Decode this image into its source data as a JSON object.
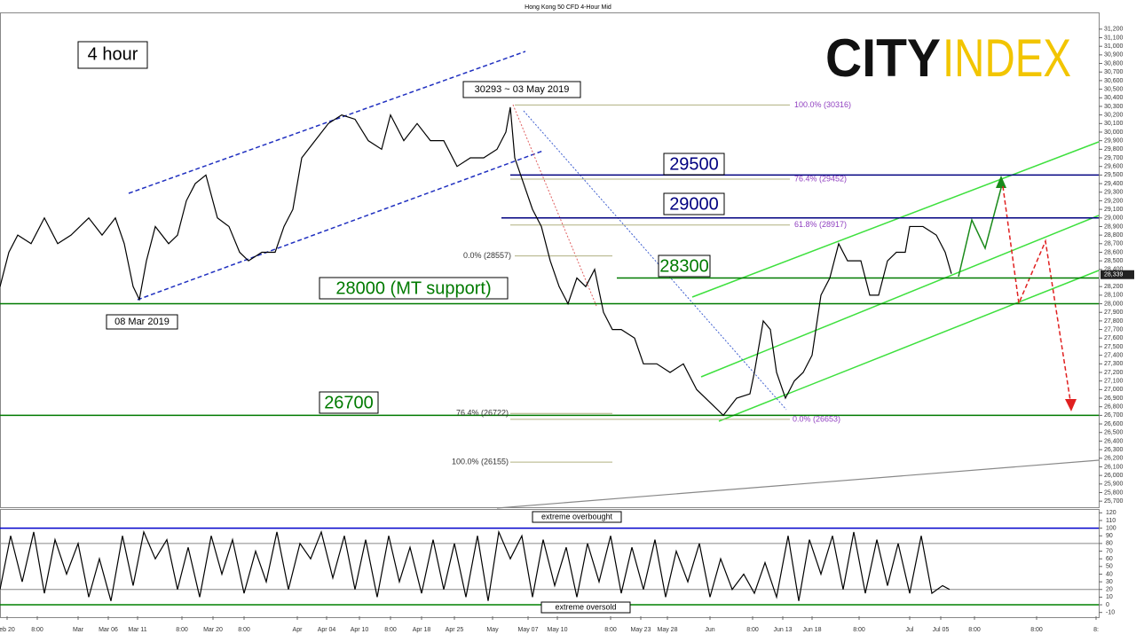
{
  "chart_data": {
    "type": "line",
    "title": "Hong Kong 50 CFD 4-Hour Mid",
    "timeframe": "4 hour",
    "logo": [
      "CITY",
      "INDEX"
    ],
    "annotations": [
      {
        "label": "30293 ~ 03 May 2019"
      },
      {
        "label": "08 Mar 2019"
      }
    ],
    "x": [
      0,
      10,
      20,
      35,
      50,
      65,
      80,
      100,
      115,
      130,
      140,
      150,
      157,
      165,
      175,
      190,
      200,
      210,
      220,
      232,
      245,
      258,
      270,
      280,
      295,
      310,
      320,
      330,
      340,
      355,
      370,
      385,
      400,
      415,
      430,
      440,
      455,
      470,
      485,
      500,
      515,
      530,
      545,
      560,
      570,
      575,
      580,
      590,
      600,
      610,
      620,
      630,
      640,
      650,
      660,
      670,
      680,
      690,
      700,
      715,
      725,
      740,
      755,
      770,
      785,
      800,
      815,
      830,
      845,
      850,
      860,
      868,
      875,
      885,
      895,
      905,
      915,
      925,
      935,
      945,
      955,
      970,
      980,
      990,
      1000,
      1010,
      1020,
      1025,
      1040,
      1055,
      1065,
      1072
    ],
    "values": [
      28200,
      28600,
      28800,
      28700,
      29000,
      28700,
      28800,
      29000,
      28800,
      29000,
      28700,
      28200,
      28050,
      28500,
      28900,
      28700,
      28800,
      29200,
      29400,
      29500,
      29000,
      28900,
      28600,
      28500,
      28600,
      28600,
      28900,
      29100,
      29700,
      29900,
      30100,
      30200,
      30150,
      29900,
      29800,
      30200,
      29900,
      30100,
      29900,
      29900,
      29600,
      29700,
      29700,
      29800,
      30000,
      30290,
      29700,
      29400,
      29100,
      28900,
      28500,
      28200,
      28000,
      28300,
      28200,
      28400,
      27900,
      27700,
      27700,
      27600,
      27300,
      27300,
      27200,
      27300,
      27000,
      26850,
      26700,
      26900,
      26950,
      27200,
      27800,
      27700,
      27200,
      26900,
      27100,
      27200,
      27400,
      28100,
      28300,
      28700,
      28500,
      28500,
      28100,
      28100,
      28500,
      28600,
      28600,
      28900,
      28900,
      28800,
      28600,
      28350
    ],
    "color": "#000000",
    "xlim": [
      0,
      1238
    ],
    "xticks": [
      {
        "value": 8,
        "label": "eb 20"
      },
      {
        "value": 42,
        "label": "8:00"
      },
      {
        "value": 88,
        "label": "Mar"
      },
      {
        "value": 122,
        "label": "Mar 06"
      },
      {
        "value": 155,
        "label": "Mar 11"
      },
      {
        "value": 205,
        "label": "8:00"
      },
      {
        "value": 240,
        "label": "Mar 20"
      },
      {
        "value": 275,
        "label": "8:00"
      },
      {
        "value": 335,
        "label": "Apr"
      },
      {
        "value": 368,
        "label": "Apr 04"
      },
      {
        "value": 405,
        "label": "Apr 10"
      },
      {
        "value": 440,
        "label": "8:00"
      },
      {
        "value": 475,
        "label": "Apr 18"
      },
      {
        "value": 512,
        "label": "Apr 25"
      },
      {
        "value": 555,
        "label": "May"
      },
      {
        "value": 595,
        "label": "May 07"
      },
      {
        "value": 628,
        "label": "May 10"
      },
      {
        "value": 688,
        "label": "8:00"
      },
      {
        "value": 722,
        "label": "May 23"
      },
      {
        "value": 752,
        "label": "May 28"
      },
      {
        "value": 800,
        "label": "Jun"
      },
      {
        "value": 848,
        "label": "8:00"
      },
      {
        "value": 882,
        "label": "Jun 13"
      },
      {
        "value": 915,
        "label": "Jun 18"
      },
      {
        "value": 968,
        "label": "8:00"
      },
      {
        "value": 1025,
        "label": "Jul"
      },
      {
        "value": 1060,
        "label": "Jul 05"
      },
      {
        "value": 1098,
        "label": "8:00"
      },
      {
        "value": 1168,
        "label": "8:00"
      },
      {
        "value": 1235,
        "label": "8:"
      }
    ],
    "ylim": [
      25650,
      31250
    ],
    "yticks": [
      {
        "value": 31200,
        "label": "31,200"
      },
      {
        "value": 31100,
        "label": "31,100"
      },
      {
        "value": 31000,
        "label": "31,000"
      },
      {
        "value": 30900,
        "label": "30,900"
      },
      {
        "value": 30800,
        "label": "30,800"
      },
      {
        "value": 30700,
        "label": "30,700"
      },
      {
        "value": 30600,
        "label": "30,600"
      },
      {
        "value": 30500,
        "label": "30,500"
      },
      {
        "value": 30400,
        "label": "30,400"
      },
      {
        "value": 30300,
        "label": "30,300"
      },
      {
        "value": 30200,
        "label": "30,200"
      },
      {
        "value": 30100,
        "label": "30,100"
      },
      {
        "value": 30000,
        "label": "30,000"
      },
      {
        "value": 29900,
        "label": "29,900"
      },
      {
        "value": 29800,
        "label": "29,800"
      },
      {
        "value": 29700,
        "label": "29,700"
      },
      {
        "value": 29600,
        "label": "29,600"
      },
      {
        "value": 29500,
        "label": "29,500"
      },
      {
        "value": 29400,
        "label": "29,400"
      },
      {
        "value": 29300,
        "label": "29,300"
      },
      {
        "value": 29200,
        "label": "29,200"
      },
      {
        "value": 29100,
        "label": "29,100"
      },
      {
        "value": 29000,
        "label": "29,000"
      },
      {
        "value": 28900,
        "label": "28,900"
      },
      {
        "value": 28800,
        "label": "28,800"
      },
      {
        "value": 28700,
        "label": "28,700"
      },
      {
        "value": 28600,
        "label": "28,600"
      },
      {
        "value": 28500,
        "label": "28,500"
      },
      {
        "value": 28400,
        "label": "28,400"
      },
      {
        "value": 28200,
        "label": "28,200"
      },
      {
        "value": 28100,
        "label": "28,100"
      },
      {
        "value": 28000,
        "label": "28,000"
      },
      {
        "value": 27900,
        "label": "27,900"
      },
      {
        "value": 27800,
        "label": "27,800"
      },
      {
        "value": 27700,
        "label": "27,700"
      },
      {
        "value": 27600,
        "label": "27,600"
      },
      {
        "value": 27500,
        "label": "27,500"
      },
      {
        "value": 27400,
        "label": "27,400"
      },
      {
        "value": 27300,
        "label": "27,300"
      },
      {
        "value": 27200,
        "label": "27,200"
      },
      {
        "value": 27100,
        "label": "27,100"
      },
      {
        "value": 27000,
        "label": "27,000"
      },
      {
        "value": 26900,
        "label": "26,900"
      },
      {
        "value": 26800,
        "label": "26,800"
      },
      {
        "value": 26700,
        "label": "26,700"
      },
      {
        "value": 26600,
        "label": "26,600"
      },
      {
        "value": 26500,
        "label": "26,500"
      },
      {
        "value": 26400,
        "label": "26,400"
      },
      {
        "value": 26300,
        "label": "26,300"
      },
      {
        "value": 26200,
        "label": "26,200"
      },
      {
        "value": 26100,
        "label": "26,100"
      },
      {
        "value": 26000,
        "label": "26,000"
      },
      {
        "value": 25900,
        "label": "25,900"
      },
      {
        "value": 25800,
        "label": "25,800"
      },
      {
        "value": 25700,
        "label": "25,700"
      }
    ],
    "last": {
      "value": 28339,
      "label": "28,339"
    },
    "levels": [
      {
        "value": 29500,
        "label": "29500",
        "color": "#000080"
      },
      {
        "value": 29000,
        "label": "29000",
        "color": "#000080"
      },
      {
        "value": 28300,
        "label": "28300",
        "color": "#007a00"
      },
      {
        "value": 28000,
        "label": "28000 (MT support)",
        "color": "#007a00"
      },
      {
        "value": 26700,
        "label": "26700",
        "color": "#007a00"
      }
    ],
    "fib": [
      {
        "value": 30316,
        "label": "100.0% (30316)"
      },
      {
        "value": 29452,
        "label": "76.4% (29452)"
      },
      {
        "value": 28917,
        "label": "61.8% (28917)"
      },
      {
        "value": 28557,
        "label": "0.0% (28557)"
      },
      {
        "value": 26722,
        "label": "76.4% (26722)"
      },
      {
        "value": 26653,
        "label": "0.0% (26653)"
      },
      {
        "value": 26155,
        "label": "100.0% (26155)"
      }
    ],
    "osc": {
      "x": [
        0,
        12,
        25,
        38,
        50,
        62,
        75,
        88,
        100,
        112,
        125,
        138,
        150,
        162,
        175,
        188,
        200,
        212,
        225,
        238,
        250,
        262,
        275,
        288,
        300,
        312,
        325,
        338,
        350,
        362,
        375,
        388,
        400,
        412,
        425,
        438,
        450,
        462,
        475,
        488,
        500,
        512,
        525,
        538,
        550,
        562,
        575,
        588,
        600,
        612,
        625,
        638,
        650,
        662,
        675,
        688,
        700,
        712,
        725,
        738,
        750,
        762,
        775,
        788,
        800,
        812,
        825,
        838,
        850,
        862,
        875,
        888,
        900,
        912,
        925,
        938,
        950,
        962,
        975,
        988,
        1000,
        1012,
        1025,
        1038,
        1050,
        1062,
        1070
      ],
      "values": [
        20,
        90,
        30,
        95,
        15,
        85,
        40,
        80,
        10,
        60,
        5,
        90,
        25,
        95,
        60,
        85,
        20,
        75,
        10,
        90,
        40,
        85,
        15,
        70,
        30,
        95,
        20,
        80,
        60,
        95,
        35,
        90,
        20,
        85,
        10,
        90,
        30,
        75,
        15,
        85,
        20,
        80,
        10,
        90,
        5,
        95,
        60,
        90,
        10,
        85,
        25,
        75,
        10,
        80,
        30,
        90,
        15,
        75,
        20,
        85,
        10,
        70,
        30,
        80,
        10,
        60,
        20,
        40,
        15,
        55,
        10,
        90,
        5,
        85,
        40,
        90,
        20,
        95,
        15,
        85,
        25,
        80,
        15,
        90,
        15,
        25,
        20
      ],
      "color": "#000000",
      "ylim": [
        -15,
        125
      ],
      "yticks": [
        120,
        110,
        100,
        90,
        80,
        70,
        60,
        50,
        40,
        30,
        20,
        10,
        0,
        -10
      ],
      "bands": [
        80,
        20
      ],
      "levels": [
        {
          "value": 100,
          "label": "extreme overbought",
          "color": "#0000cc"
        },
        {
          "value": 0,
          "label": "extreme oversold",
          "color": "#008000"
        }
      ]
    }
  }
}
